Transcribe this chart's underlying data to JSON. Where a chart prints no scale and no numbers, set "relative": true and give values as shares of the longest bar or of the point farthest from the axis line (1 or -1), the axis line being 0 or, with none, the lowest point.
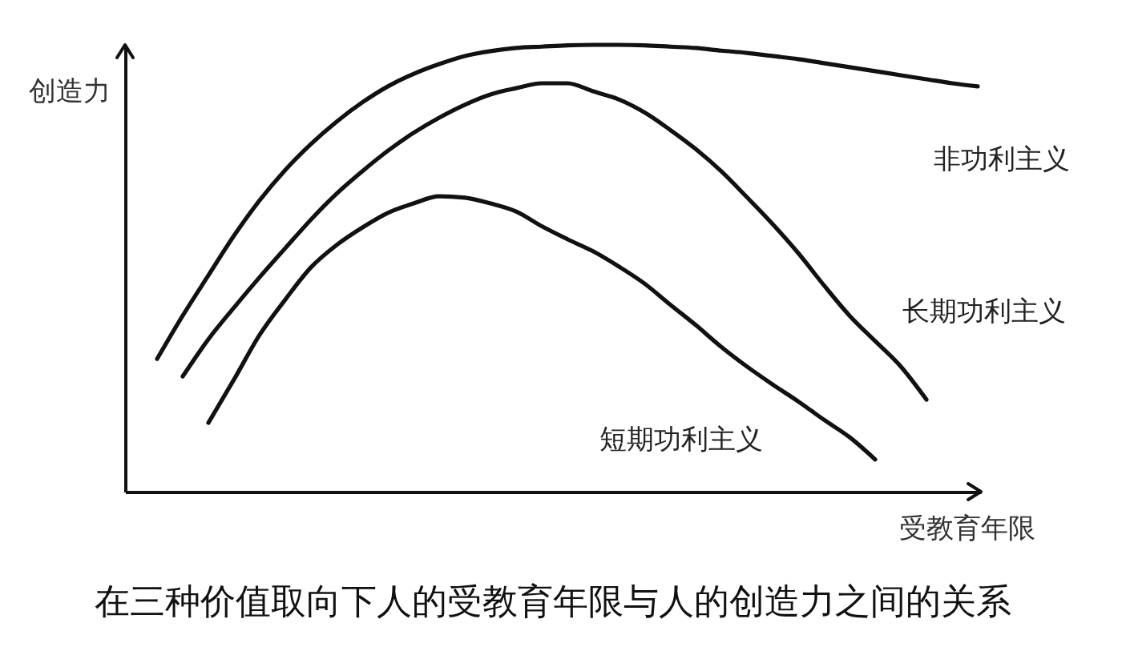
{
  "chart_data": {
    "type": "line",
    "title": "在三种价值取向下人的受教育年限与人的创造力之间的关系",
    "xlabel": "受教育年限",
    "ylabel": "创造力",
    "relative": true,
    "line_style": "solid",
    "categories": [
      null,
      null,
      null,
      null,
      null,
      null,
      null,
      null,
      null,
      null,
      null,
      null,
      null,
      null,
      null,
      null,
      null,
      null,
      null,
      null,
      null,
      null,
      null,
      null,
      null,
      null,
      null,
      null,
      null,
      null,
      null,
      null,
      null
    ],
    "series": [
      {
        "name": "非功利主义",
        "color": "#111111",
        "values": [
          0.297,
          0.394,
          0.484,
          0.573,
          0.652,
          0.72,
          0.778,
          0.828,
          0.871,
          0.907,
          0.935,
          0.957,
          0.975,
          0.986,
          0.993,
          0.996,
          0.999,
          1,
          1,
          0.999,
          0.996,
          0.993,
          0.987,
          0.982,
          0.975,
          0.968,
          0.959,
          0.95,
          0.941,
          0.932,
          0.923,
          0.914,
          0.907
        ]
      },
      {
        "name": "长期功利主义",
        "color": "#111111",
        "values": [
          null,
          0.258,
          0.341,
          0.412,
          0.48,
          0.545,
          0.609,
          0.667,
          0.717,
          0.763,
          0.803,
          0.837,
          0.866,
          0.889,
          0.903,
          0.914,
          0.914,
          0.896,
          0.878,
          0.849,
          0.81,
          0.767,
          0.717,
          0.659,
          0.599,
          0.534,
          0.462,
          0.394,
          0.337,
          0.28,
          0.206,
          null,
          null
        ]
      },
      {
        "name": "短期功利主义",
        "color": "#111111",
        "values": [
          null,
          null,
          0.154,
          0.251,
          0.351,
          0.43,
          0.502,
          0.552,
          0.591,
          0.624,
          0.645,
          0.661,
          0.658,
          0.645,
          0.627,
          0.594,
          0.565,
          0.538,
          0.504,
          0.466,
          0.419,
          0.373,
          0.324,
          0.28,
          0.24,
          0.202,
          0.161,
          0.122,
          0.072,
          null,
          null,
          null,
          null
        ]
      }
    ]
  }
}
